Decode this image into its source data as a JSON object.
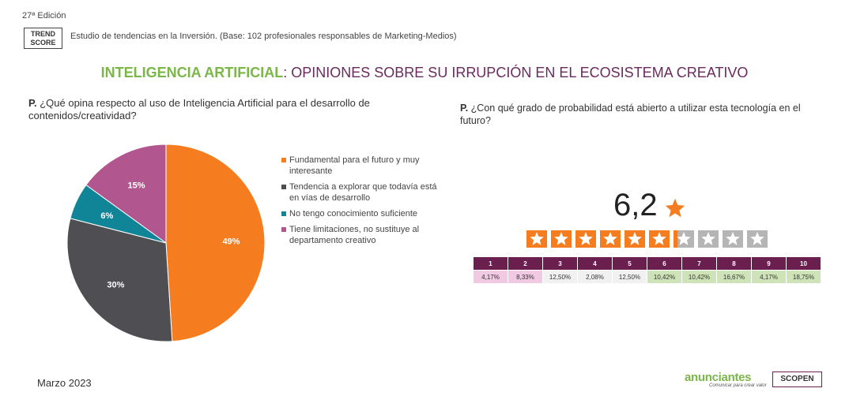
{
  "header": {
    "edition": "27ª Edición",
    "trend_score_line1": "TREND",
    "trend_score_line2": "SCORE",
    "study": "Estudio de tendencias en la Inversión. (Base: 102 profesionales responsables de Marketing-Medios)"
  },
  "title": {
    "highlight": "INTELIGENCIA ARTIFICIAL",
    "rest": ": OPINIONES SOBRE SU IRRUPCIÓN EN EL ECOSISTEMA CREATIVO"
  },
  "left_question": {
    "mark": "P.",
    "text": " ¿Qué opina respecto al uso de Inteligencia Artificial para el desarrollo de contenidos/creatividad?"
  },
  "right_question": {
    "mark": "P.",
    "text": " ¿Con qué grado de probabilidad está abierto a utilizar esta tecnología en el futuro?"
  },
  "colors": {
    "orange": "#f57d1f",
    "dark_grey": "#4e4e53",
    "teal": "#0f8597",
    "pink": "#b2568f",
    "green": "#7ab648",
    "purple": "#6b1f4f",
    "star_grey": "#b5b5b5"
  },
  "chart_data": [
    {
      "type": "pie",
      "categories": [
        "Fundamental para el futuro y muy interesante",
        "Tendencia a explorar que todavía está en vías de desarrollo",
        "No tengo conocimiento suficiente",
        "Tiene limitaciones, no sustituye al departamento creativo"
      ],
      "values": [
        49,
        30,
        6,
        15
      ],
      "labels": [
        "49%",
        "30%",
        "6%",
        "15%"
      ],
      "colors": [
        "#f57d1f",
        "#4e4e53",
        "#0f8597",
        "#b2568f"
      ],
      "legend_position": "right"
    },
    {
      "type": "table",
      "score": "6,2",
      "score_value": 6.2,
      "max_stars": 10,
      "categories": [
        "1",
        "2",
        "3",
        "4",
        "5",
        "6",
        "7",
        "8",
        "9",
        "10"
      ],
      "values": [
        "4,17%",
        "8,33%",
        "12,50%",
        "2,08%",
        "12,50%",
        "10,42%",
        "10,42%",
        "16,67%",
        "4,17%",
        "18,75%"
      ]
    }
  ],
  "footer": {
    "date": "Marzo 2023",
    "logo_anunciantes": "anunciantes",
    "logo_anunciantes_tagline": "Comunicar para crear valor",
    "logo_scopen": "SCOPEN"
  }
}
